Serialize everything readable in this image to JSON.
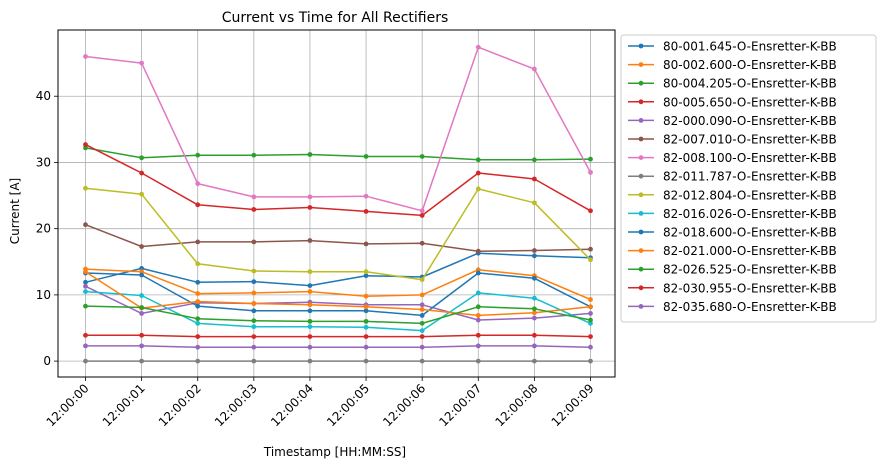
{
  "chart_data": {
    "type": "line",
    "title": "Current vs Time for All Rectifiers",
    "xlabel": "Timestamp [HH:MM:SS]",
    "ylabel": "Current [A]",
    "categories": [
      "12:00:00",
      "12:00:01",
      "12:00:02",
      "12:00:03",
      "12:00:04",
      "12:00:05",
      "12:00:06",
      "12:00:07",
      "12:00:08",
      "12:00:09"
    ],
    "ylim": [
      -2.4,
      50.0
    ],
    "yticks": [
      0,
      10,
      20,
      30,
      40
    ],
    "grid": true,
    "legend": "outside-right",
    "series": [
      {
        "name": "80-001.645-O-Ensretter-K-BB",
        "color": "#1f77b4",
        "values": [
          11.9,
          14.0,
          11.9,
          12.0,
          11.4,
          12.9,
          12.7,
          16.3,
          15.9,
          15.6
        ]
      },
      {
        "name": "80-002.600-O-Ensretter-K-BB",
        "color": "#ff7f0e",
        "values": [
          13.9,
          13.5,
          10.2,
          10.3,
          10.5,
          9.8,
          10.0,
          13.8,
          12.9,
          9.3
        ]
      },
      {
        "name": "80-004.205-O-Ensretter-K-BB",
        "color": "#2ca02c",
        "values": [
          32.2,
          30.7,
          31.1,
          31.1,
          31.2,
          30.9,
          30.9,
          30.4,
          30.4,
          30.5
        ]
      },
      {
        "name": "80-005.650-O-Ensretter-K-BB",
        "color": "#d62728",
        "values": [
          32.7,
          28.4,
          23.6,
          22.9,
          23.2,
          22.6,
          22.0,
          28.4,
          27.5,
          22.7
        ]
      },
      {
        "name": "82-000.090-O-Ensretter-K-BB",
        "color": "#9467bd",
        "values": [
          11.3,
          7.2,
          8.8,
          8.7,
          8.9,
          8.5,
          8.5,
          6.2,
          6.5,
          7.2
        ]
      },
      {
        "name": "82-007.010-O-Ensretter-K-BB",
        "color": "#8c564b",
        "values": [
          20.6,
          17.3,
          18.0,
          18.0,
          18.2,
          17.7,
          17.8,
          16.6,
          16.7,
          16.9
        ]
      },
      {
        "name": "82-008.100-O-Ensretter-K-BB",
        "color": "#e377c2",
        "values": [
          46.0,
          45.0,
          26.8,
          24.8,
          24.8,
          24.9,
          22.7,
          47.4,
          44.1,
          28.5
        ]
      },
      {
        "name": "82-011.787-O-Ensretter-K-BB",
        "color": "#7f7f7f",
        "values": [
          0.0,
          0.0,
          0.0,
          0.0,
          0.0,
          0.0,
          0.0,
          0.0,
          0.0,
          0.0
        ]
      },
      {
        "name": "82-012.804-O-Ensretter-K-BB",
        "color": "#bcbd22",
        "values": [
          26.1,
          25.2,
          14.7,
          13.6,
          13.5,
          13.5,
          12.3,
          26.0,
          23.9,
          15.3
        ]
      },
      {
        "name": "82-016.026-O-Ensretter-K-BB",
        "color": "#17becf",
        "values": [
          10.5,
          9.9,
          5.7,
          5.2,
          5.2,
          5.1,
          4.6,
          10.3,
          9.5,
          5.7
        ]
      },
      {
        "name": "82-018.600-O-Ensretter-K-BB",
        "color": "#1f77b4",
        "values": [
          13.3,
          13.0,
          8.3,
          7.6,
          7.6,
          7.6,
          6.9,
          13.3,
          12.5,
          8.2
        ]
      },
      {
        "name": "82-021.000-O-Ensretter-K-BB",
        "color": "#ff7f0e",
        "values": [
          13.5,
          8.0,
          9.0,
          8.7,
          8.5,
          8.2,
          7.8,
          6.9,
          7.3,
          8.2
        ]
      },
      {
        "name": "82-026.525-O-Ensretter-K-BB",
        "color": "#2ca02c",
        "values": [
          8.3,
          8.1,
          6.4,
          6.1,
          6.0,
          6.0,
          5.7,
          8.2,
          7.9,
          6.2
        ]
      },
      {
        "name": "82-030.955-O-Ensretter-K-BB",
        "color": "#d62728",
        "values": [
          3.9,
          3.9,
          3.7,
          3.7,
          3.7,
          3.7,
          3.7,
          3.9,
          3.9,
          3.7
        ]
      },
      {
        "name": "82-035.680-O-Ensretter-K-BB",
        "color": "#9467bd",
        "values": [
          2.3,
          2.3,
          2.1,
          2.1,
          2.1,
          2.1,
          2.1,
          2.3,
          2.3,
          2.1
        ]
      }
    ]
  }
}
